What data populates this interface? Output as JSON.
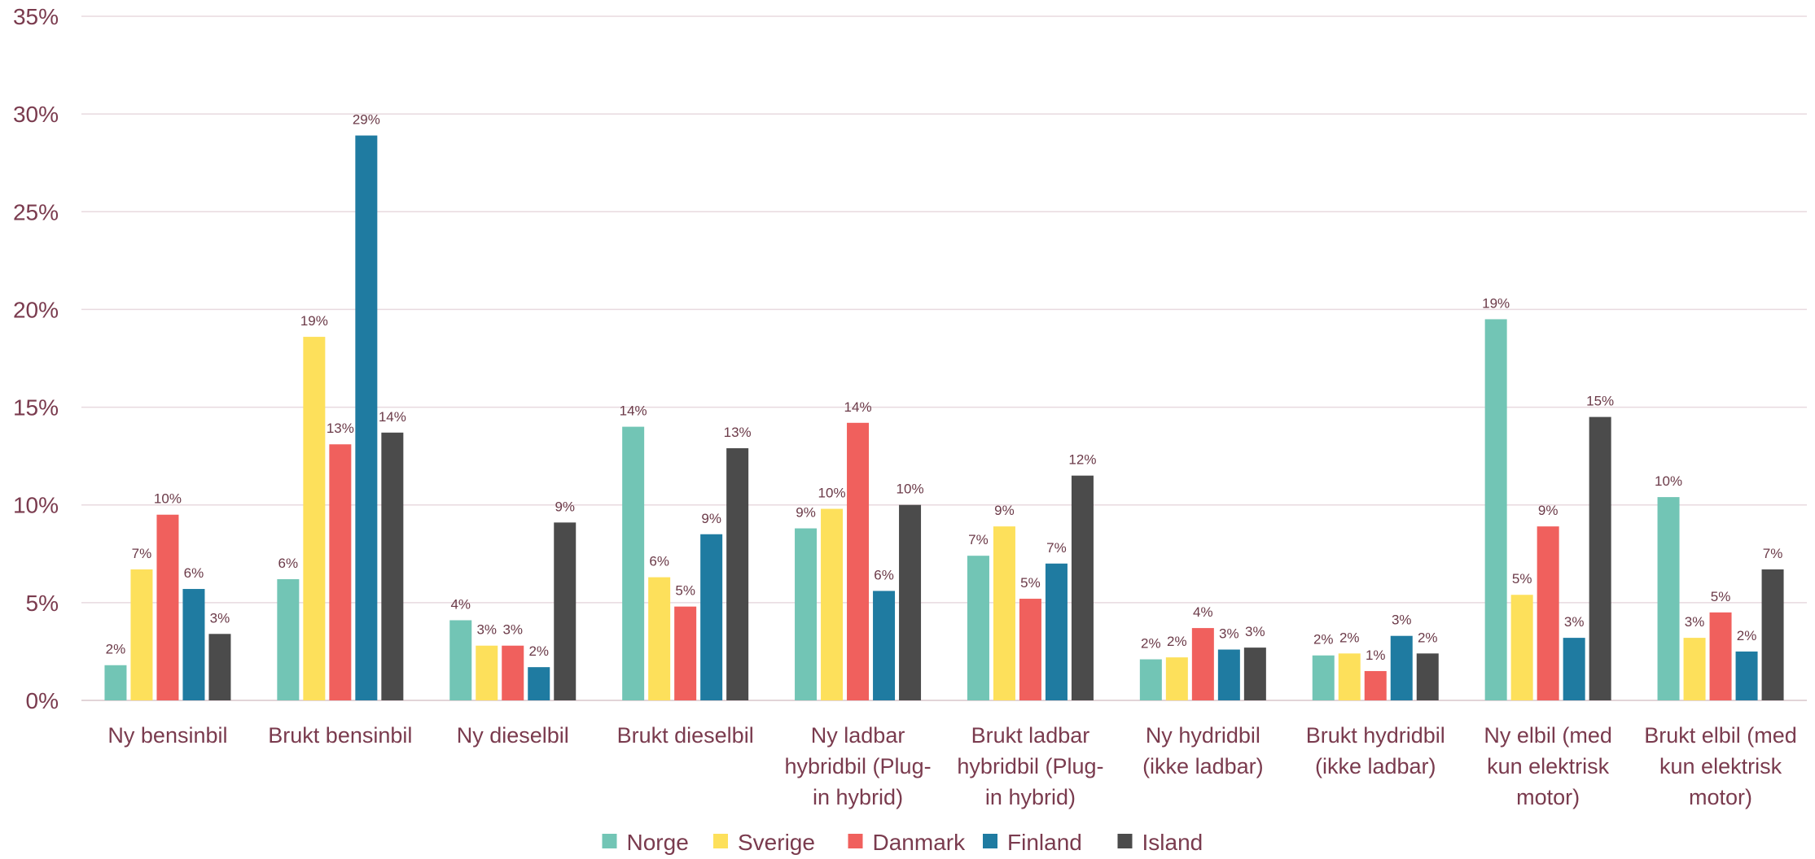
{
  "chart_data": {
    "type": "bar",
    "title": "",
    "xlabel": "",
    "ylabel": "",
    "ylim": [
      0,
      35
    ],
    "yticks": [
      "0%",
      "5%",
      "10%",
      "15%",
      "20%",
      "25%",
      "30%",
      "35%"
    ],
    "grid": true,
    "legend_position": "bottom",
    "categories": [
      [
        "Ny bensinbil"
      ],
      [
        "Brukt bensinbil"
      ],
      [
        "Ny dieselbil"
      ],
      [
        "Brukt dieselbil"
      ],
      [
        "Ny ladbar",
        "hybridbil (Plug-",
        "in hybrid)"
      ],
      [
        "Brukt ladbar",
        "hybridbil (Plug-",
        "in hybrid)"
      ],
      [
        "Ny hydridbil",
        "(ikke ladbar)"
      ],
      [
        "Brukt hydridbil",
        "(ikke ladbar)"
      ],
      [
        "Ny elbil (med",
        "kun elektrisk",
        "motor)"
      ],
      [
        "Brukt elbil (med",
        "kun elektrisk",
        "motor)"
      ]
    ],
    "series": [
      {
        "name": "Norge",
        "color": "#72c5b5",
        "values": [
          1.8,
          6.2,
          4.1,
          14.0,
          8.8,
          7.4,
          2.1,
          2.3,
          19.5,
          10.4
        ],
        "labels": [
          "2%",
          "6%",
          "4%",
          "14%",
          "9%",
          "7%",
          "2%",
          "2%",
          "19%",
          "10%"
        ]
      },
      {
        "name": "Sverige",
        "color": "#fde05b",
        "values": [
          6.7,
          18.6,
          2.8,
          6.3,
          9.8,
          8.9,
          2.2,
          2.4,
          5.4,
          3.2
        ],
        "labels": [
          "7%",
          "19%",
          "3%",
          "6%",
          "10%",
          "9%",
          "2%",
          "2%",
          "5%",
          "3%"
        ]
      },
      {
        "name": "Danmark",
        "color": "#f0605d",
        "values": [
          9.5,
          13.1,
          2.8,
          4.8,
          14.2,
          5.2,
          3.7,
          1.5,
          8.9,
          4.5
        ],
        "labels": [
          "10%",
          "13%",
          "3%",
          "5%",
          "14%",
          "5%",
          "4%",
          "1%",
          "9%",
          "5%"
        ]
      },
      {
        "name": "Finland",
        "color": "#1f7ba1",
        "values": [
          5.7,
          28.9,
          1.7,
          8.5,
          5.6,
          7.0,
          2.6,
          3.3,
          3.2,
          2.5
        ],
        "labels": [
          "6%",
          "29%",
          "2%",
          "9%",
          "6%",
          "7%",
          "3%",
          "3%",
          "3%",
          "2%"
        ]
      },
      {
        "name": "Island",
        "color": "#4b4b4b",
        "values": [
          3.4,
          13.7,
          9.1,
          12.9,
          10.0,
          11.5,
          2.7,
          2.4,
          14.5,
          6.7
        ],
        "labels": [
          "3%",
          "14%",
          "9%",
          "13%",
          "10%",
          "12%",
          "3%",
          "2%",
          "15%",
          "7%"
        ]
      }
    ]
  }
}
